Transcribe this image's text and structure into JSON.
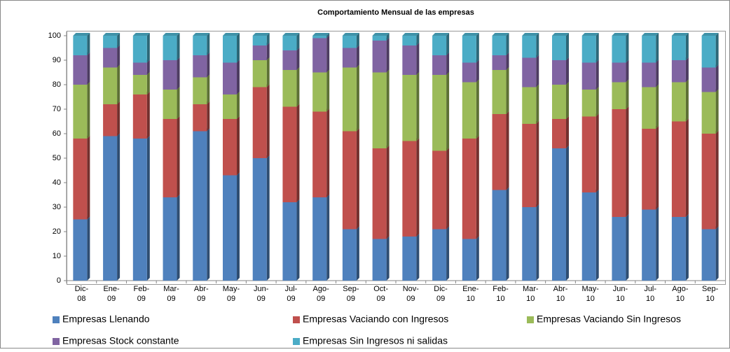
{
  "chart_data": {
    "type": "stacked_bar",
    "title": "Comportamiento Mensual de las empresas",
    "categories": [
      "Dic-08",
      "Ene-09",
      "Feb-09",
      "Mar-09",
      "Abr-09",
      "May-09",
      "Jun-09",
      "Jul-09",
      "Ago-09",
      "Sep-09",
      "Oct-09",
      "Nov-09",
      "Dic-09",
      "Ene-10",
      "Feb-10",
      "Mar-10",
      "Abr-10",
      "May-10",
      "Jun-10",
      "Jul-10",
      "Ago-10",
      "Sep-10"
    ],
    "series": [
      {
        "name": "Empresas Llenando",
        "color": "#4f81bd",
        "values": [
          25,
          59,
          58,
          34,
          61,
          43,
          50,
          32,
          34,
          21,
          17,
          18,
          21,
          17,
          37,
          30,
          54,
          36,
          26,
          29,
          26,
          21
        ]
      },
      {
        "name": "Empresas Vaciando con Ingresos",
        "color": "#c0504d",
        "values": [
          33,
          13,
          18,
          32,
          11,
          23,
          29,
          39,
          35,
          40,
          37,
          39,
          32,
          41,
          31,
          34,
          12,
          31,
          44,
          33,
          39,
          39
        ]
      },
      {
        "name": "Empresas Vaciando Sin Ingresos",
        "color": "#9bbb59",
        "values": [
          22,
          15,
          8,
          12,
          11,
          10,
          11,
          15,
          16,
          26,
          31,
          27,
          31,
          23,
          18,
          15,
          14,
          11,
          11,
          17,
          16,
          17
        ]
      },
      {
        "name": "Empresas Stock constante",
        "color": "#8064a2",
        "values": [
          12,
          8,
          5,
          12,
          9,
          13,
          6,
          8,
          14,
          8,
          13,
          12,
          8,
          8,
          6,
          12,
          10,
          11,
          8,
          10,
          9,
          10
        ]
      },
      {
        "name": "Empresas Sin Ingresos ni salidas",
        "color": "#4bacc6",
        "values": [
          8,
          5,
          11,
          10,
          8,
          11,
          4,
          6,
          1,
          5,
          2,
          4,
          8,
          11,
          8,
          9,
          10,
          11,
          11,
          11,
          10,
          13
        ]
      }
    ],
    "ylim": [
      0,
      100
    ],
    "yticks": [
      0,
      10,
      20,
      30,
      40,
      50,
      60,
      70,
      80,
      90,
      100
    ],
    "grid": false,
    "legend": "bottom"
  }
}
